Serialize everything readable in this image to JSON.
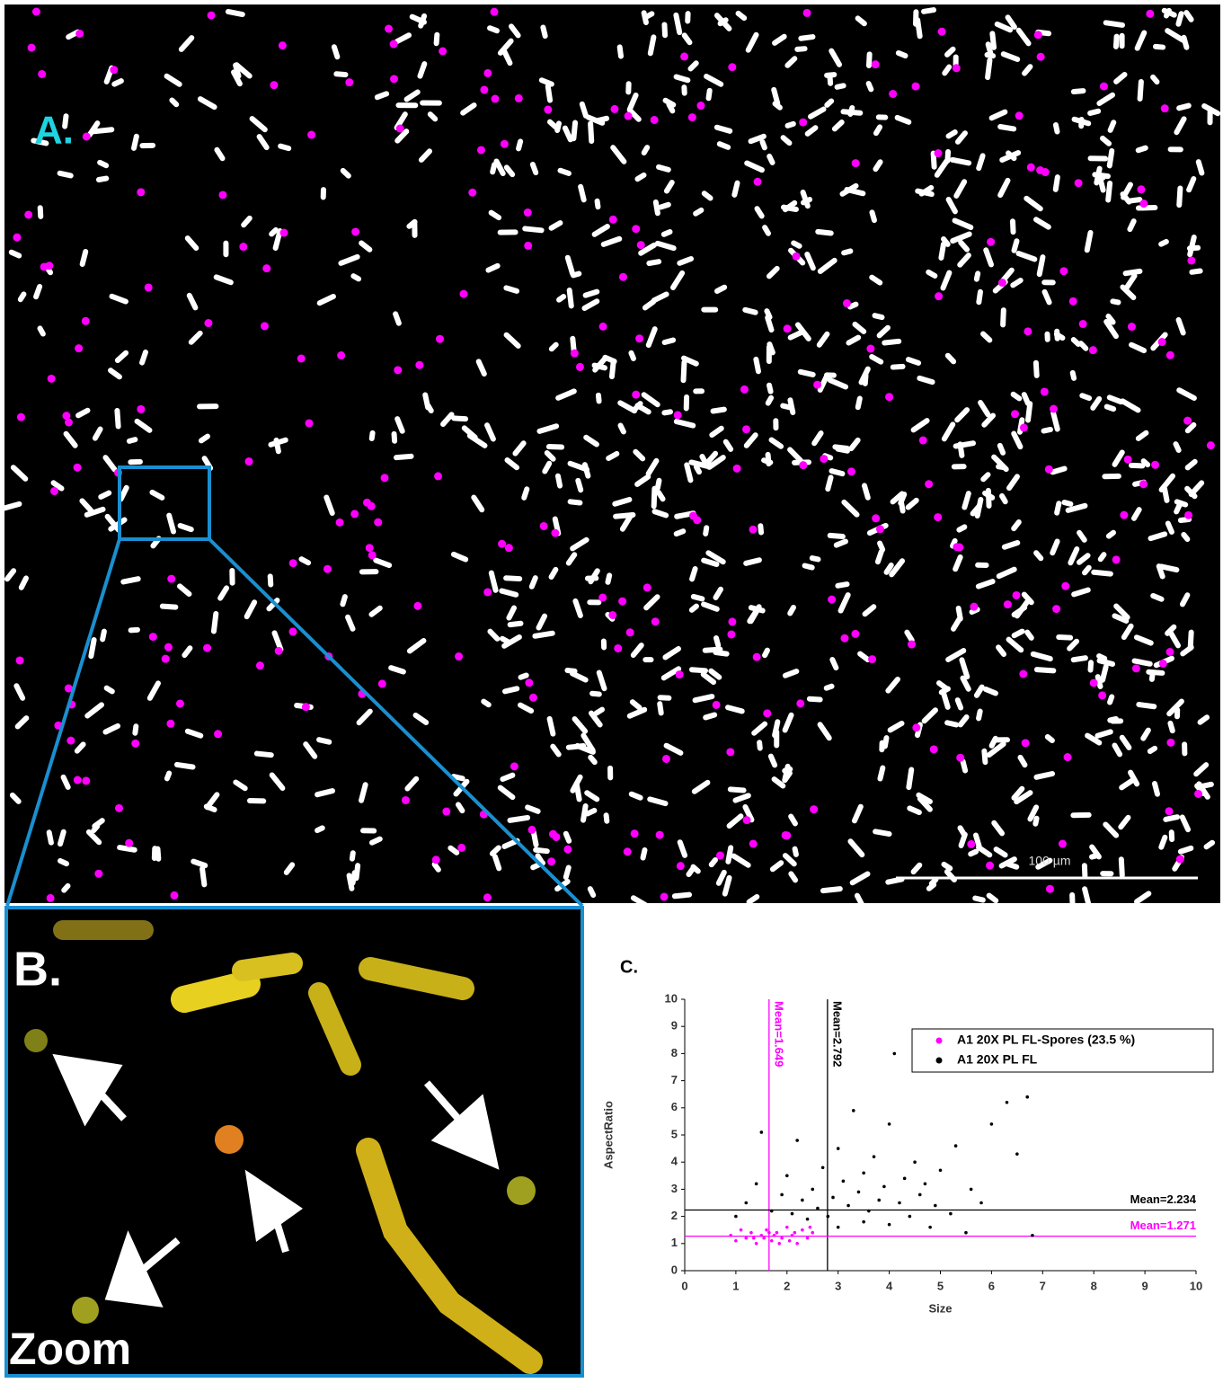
{
  "panel_a": {
    "label": "A.",
    "scale_bar": "100 µm"
  },
  "panel_b": {
    "label": "B.",
    "caption": "Zoom"
  },
  "chart_data": {
    "type": "scatter",
    "panel_label": "C.",
    "xlabel": "Size",
    "ylabel": "AspectRatio",
    "xlim": [
      0,
      10
    ],
    "ylim": [
      0,
      10
    ],
    "xticks": [
      0,
      1,
      2,
      3,
      4,
      5,
      6,
      7,
      8,
      9,
      10
    ],
    "yticks": [
      0,
      1,
      2,
      3,
      4,
      5,
      6,
      7,
      8,
      9,
      10
    ],
    "legend": "upper right",
    "series": [
      {
        "name": "A1 20X PL FL-Spores (23.5 %)",
        "color": "#ff00ff",
        "x": [
          0.9,
          1.0,
          1.1,
          1.2,
          1.3,
          1.4,
          1.5,
          1.6,
          1.7,
          1.8,
          1.9,
          2.0,
          2.1,
          2.2,
          2.3,
          2.4,
          2.5,
          1.55,
          1.75,
          1.85,
          2.05,
          2.15,
          1.35,
          1.65,
          2.45
        ],
        "values": [
          1.3,
          1.1,
          1.5,
          1.2,
          1.4,
          1.0,
          1.3,
          1.5,
          1.1,
          1.4,
          1.2,
          1.6,
          1.3,
          1.0,
          1.5,
          1.2,
          1.4,
          1.2,
          1.3,
          1.0,
          1.1,
          1.4,
          1.2,
          1.4,
          1.6
        ]
      },
      {
        "name": "A1 20X PL FL",
        "color": "#000000",
        "x": [
          1.0,
          1.2,
          1.4,
          1.5,
          1.7,
          1.9,
          2.0,
          2.1,
          2.2,
          2.3,
          2.4,
          2.5,
          2.6,
          2.7,
          2.8,
          2.9,
          3.0,
          3.0,
          3.1,
          3.2,
          3.3,
          3.4,
          3.5,
          3.5,
          3.6,
          3.7,
          3.8,
          3.9,
          4.0,
          4.0,
          4.1,
          4.2,
          4.3,
          4.4,
          4.5,
          4.6,
          4.7,
          4.8,
          4.9,
          5.0,
          5.2,
          5.3,
          5.5,
          5.6,
          5.8,
          6.0,
          6.3,
          6.5,
          6.7,
          6.8
        ],
        "values": [
          2.0,
          2.5,
          3.2,
          5.1,
          2.2,
          2.8,
          3.5,
          2.1,
          4.8,
          2.6,
          1.9,
          3.0,
          2.3,
          3.8,
          2.0,
          2.7,
          4.5,
          1.6,
          3.3,
          2.4,
          5.9,
          2.9,
          1.8,
          3.6,
          2.2,
          4.2,
          2.6,
          3.1,
          1.7,
          5.4,
          8.0,
          2.5,
          3.4,
          2.0,
          4.0,
          2.8,
          3.2,
          1.6,
          2.4,
          3.7,
          2.1,
          4.6,
          1.4,
          3.0,
          2.5,
          5.4,
          6.2,
          4.3,
          6.4,
          1.3
        ]
      }
    ],
    "reference_lines": [
      {
        "axis": "x",
        "value": 1.649,
        "label": "Mean=1.649",
        "color": "#ff00ff"
      },
      {
        "axis": "x",
        "value": 2.792,
        "label": "Mean=2.792",
        "color": "#000000"
      },
      {
        "axis": "y",
        "value": 2.234,
        "label": "Mean=2.234",
        "color": "#000000"
      },
      {
        "axis": "y",
        "value": 1.271,
        "label": "Mean=1.271",
        "color": "#ff00ff"
      }
    ]
  }
}
